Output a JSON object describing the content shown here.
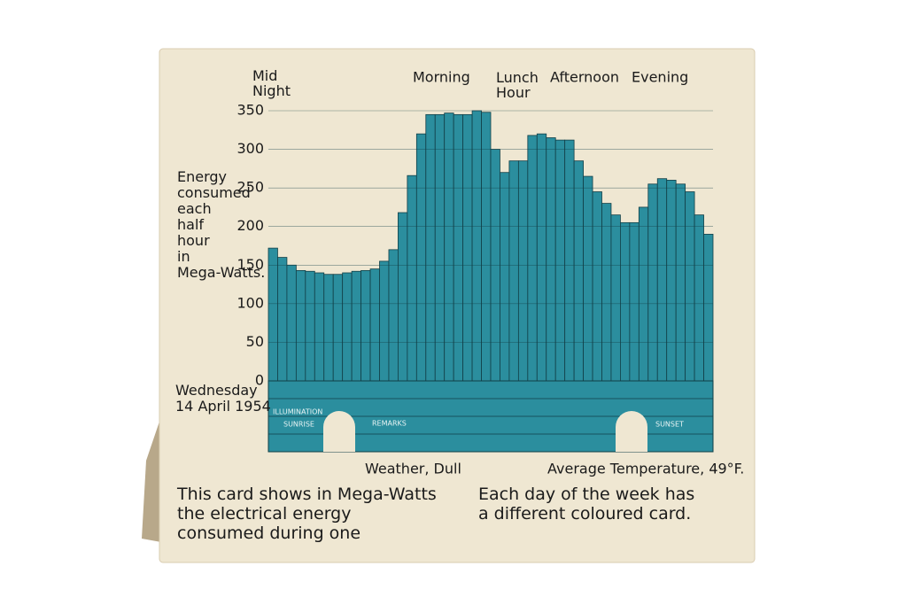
{
  "chart_data": {
    "type": "bar",
    "annotations": [
      "Mid Night",
      "Morning",
      "Lunch Hour",
      "Afternoon",
      "Evening"
    ],
    "ylabel": "Energy consumed each half hour in Mega-Watts.",
    "date": "Wednesday 14 April 1954",
    "weather": "Weather, Dull",
    "temperature": "Average Temperature, 49°F.",
    "caption_left": "This card shows in Mega-Watts the electrical energy consumed during one day.",
    "caption_right": "Each day of the week has a different coloured card.",
    "strip_labels": [
      "ILLUMINATION",
      "REMARKS",
      "SUNRISE",
      "SUNSET"
    ],
    "categories": [
      null,
      null,
      null,
      null,
      null,
      null,
      null,
      null,
      null,
      null,
      null,
      null,
      null,
      null,
      null,
      null,
      null,
      null,
      null,
      null,
      null,
      null,
      null,
      null,
      null,
      null,
      null,
      null,
      null,
      null,
      null,
      null,
      null,
      null,
      null,
      null,
      null,
      null,
      null,
      null,
      null,
      null,
      null,
      null,
      null,
      null,
      null,
      null
    ],
    "values": [
      172,
      160,
      150,
      143,
      142,
      140,
      138,
      138,
      140,
      142,
      143,
      145,
      155,
      170,
      218,
      266,
      320,
      345,
      345,
      347,
      345,
      345,
      350,
      348,
      300,
      270,
      285,
      285,
      318,
      320,
      315,
      312,
      312,
      285,
      265,
      245,
      230,
      215,
      205,
      205,
      225,
      255,
      262,
      260,
      255,
      245,
      215,
      190
    ],
    "color": "#2b8e9e",
    "ylim": [
      0,
      350
    ],
    "yticks": [
      0,
      50,
      100,
      150,
      200,
      250,
      300,
      350
    ],
    "grid": true
  }
}
